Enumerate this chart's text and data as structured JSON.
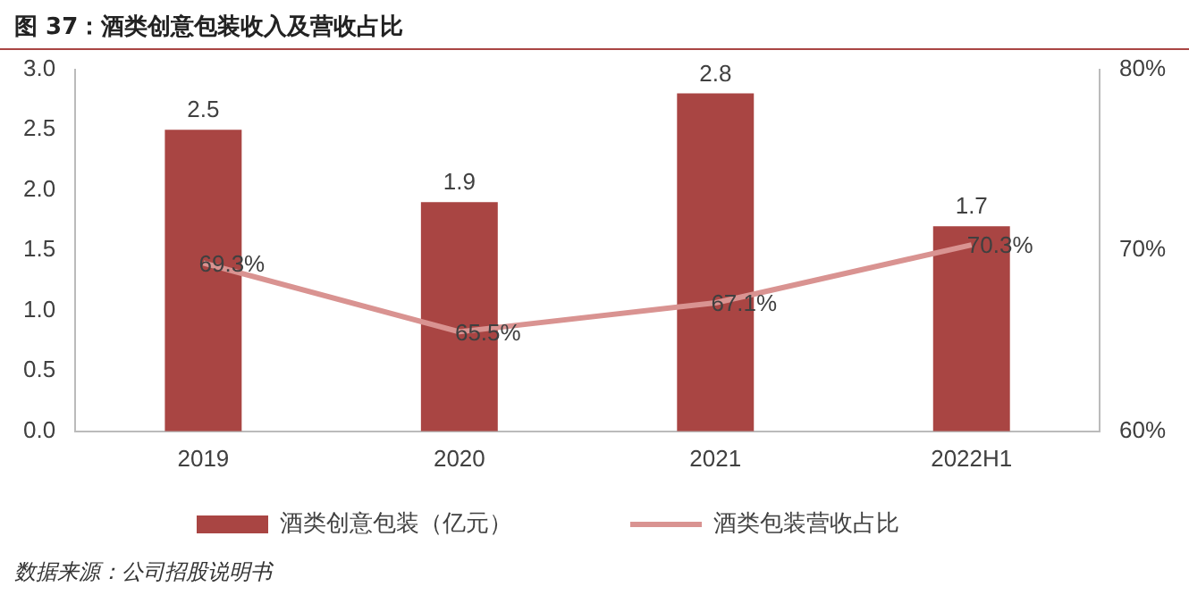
{
  "chart_data": {
    "type": "bar",
    "title": "图 37：酒类创意包装收入及营收占比",
    "categories": [
      "2019",
      "2020",
      "2021",
      "2022H1"
    ],
    "series": [
      {
        "name": "酒类创意包装（亿元）",
        "color": "#a94543",
        "values": [
          2.5,
          1.9,
          2.8,
          1.7
        ],
        "value_labels": [
          "2.5",
          "1.9",
          "2.8",
          "1.7"
        ]
      },
      {
        "name": "酒类包装营收占比",
        "type": "line",
        "axis": "y2",
        "color": "#d99391",
        "values": [
          69.3,
          65.5,
          67.1,
          70.3
        ],
        "value_labels": [
          "69.3%",
          "65.5%",
          "67.1%",
          "70.3%"
        ]
      }
    ],
    "ylim": [
      0,
      3
    ],
    "yticks": [
      {
        "value": 0,
        "label": "0.0"
      },
      {
        "value": 0.5,
        "label": "0.5"
      },
      {
        "value": 1,
        "label": "1.0"
      },
      {
        "value": 1.5,
        "label": "1.5"
      },
      {
        "value": 2,
        "label": "2.0"
      },
      {
        "value": 2.5,
        "label": "2.5"
      },
      {
        "value": 3,
        "label": "3.0"
      }
    ],
    "y2lim": [
      60,
      80
    ],
    "y2ticks": [
      {
        "value": 60,
        "label": "60%"
      },
      {
        "value": 70,
        "label": "70%"
      },
      {
        "value": 80,
        "label": "80%"
      }
    ],
    "grid": false,
    "legend": "bottom",
    "marker": "none",
    "line_style": "solid",
    "annotations": [
      "数据来源：公司招股说明书"
    ]
  }
}
